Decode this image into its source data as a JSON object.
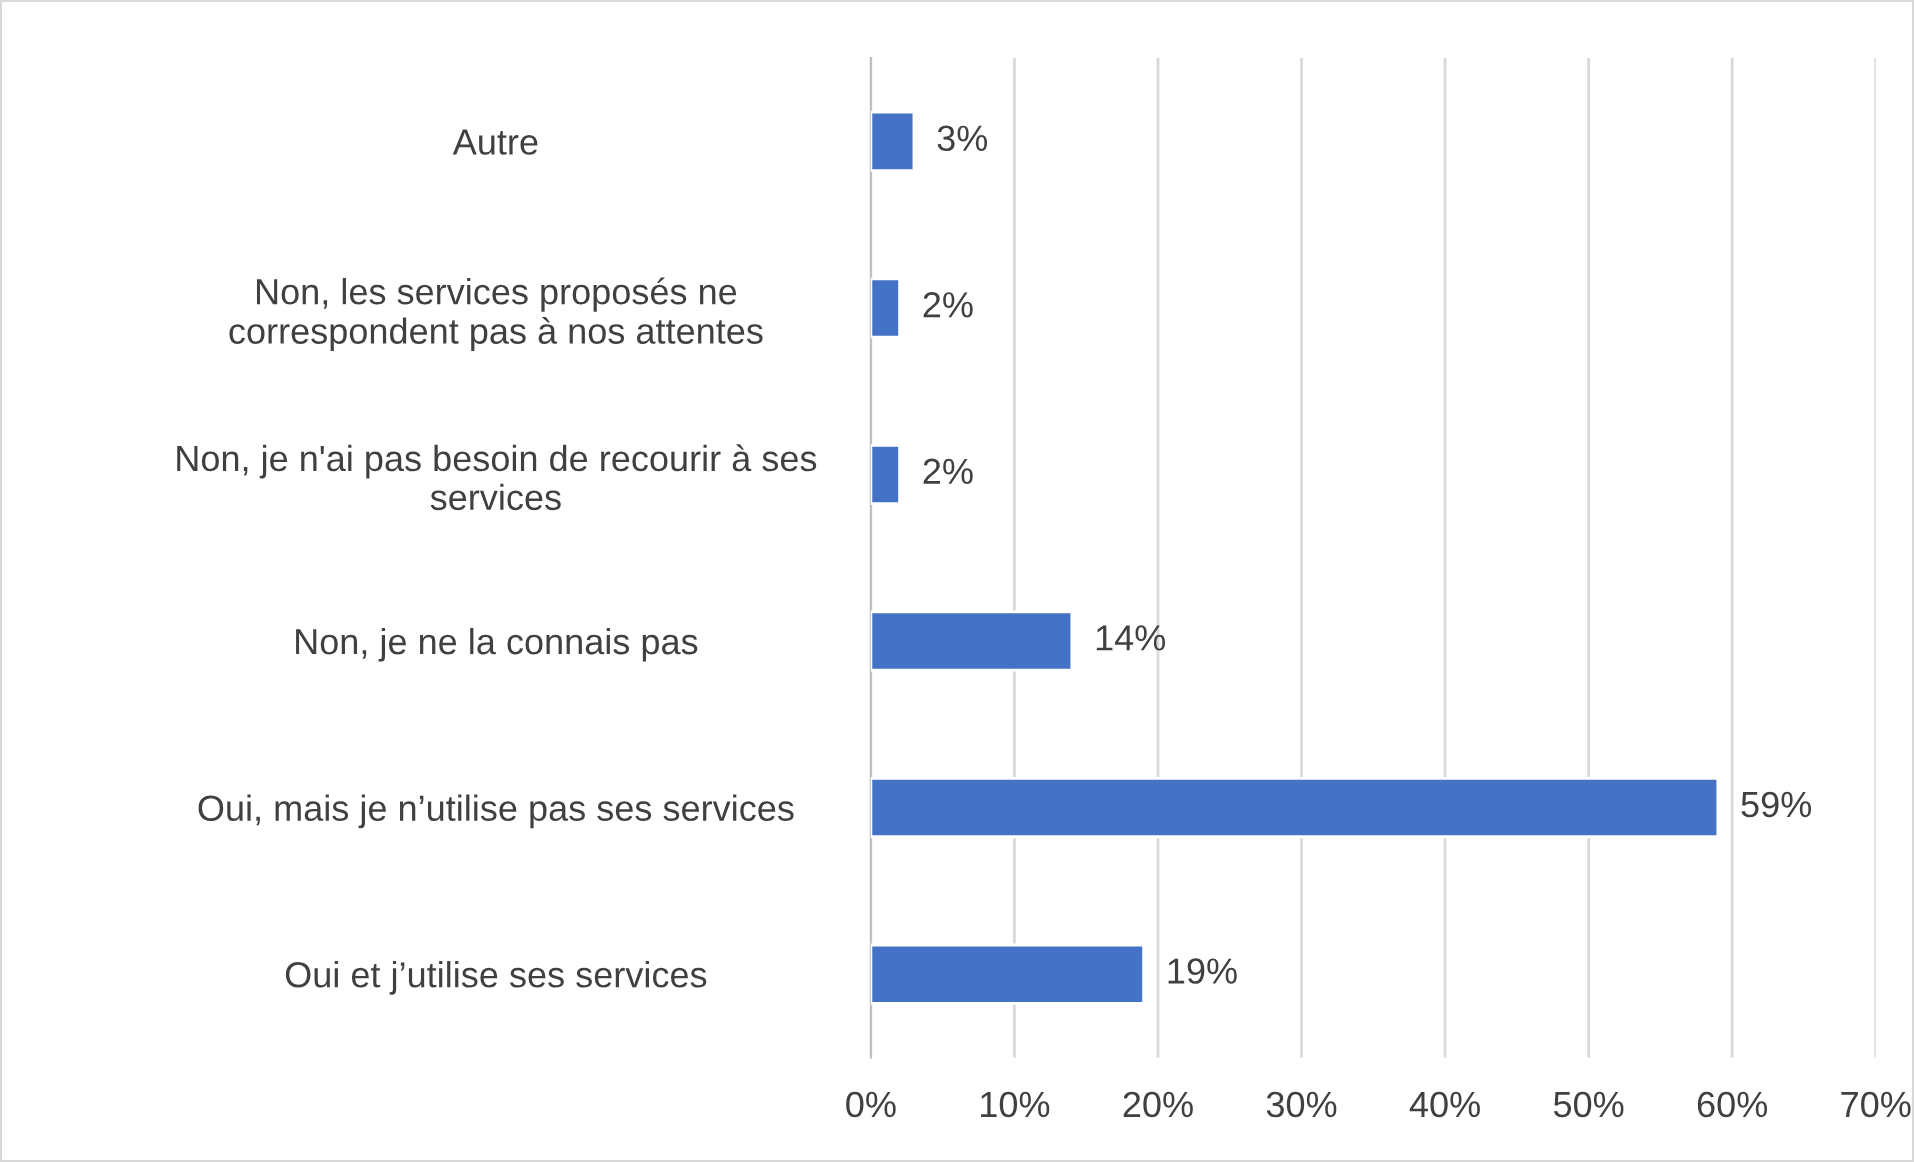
{
  "chart_data": {
    "type": "bar",
    "orientation": "horizontal",
    "categories": [
      "Autre",
      "Non, les services proposés ne\ncorrespondent pas à nos attentes",
      "Non, je n'ai pas besoin de recourir à ses\nservices",
      "Non, je ne la connais pas",
      "Oui, mais je n’utilise pas ses services",
      "Oui et j’utilise ses services"
    ],
    "values": [
      3,
      2,
      2,
      14,
      59,
      19
    ],
    "value_labels": [
      "3%",
      "2%",
      "2%",
      "14%",
      "59%",
      "19%"
    ],
    "color": "#4472c4",
    "xlim": [
      0,
      70
    ],
    "xticks": [
      {
        "value": 0,
        "label": "0%"
      },
      {
        "value": 10,
        "label": "10%"
      },
      {
        "value": 20,
        "label": "20%"
      },
      {
        "value": 30,
        "label": "30%"
      },
      {
        "value": 40,
        "label": "40%"
      },
      {
        "value": 50,
        "label": "50%"
      },
      {
        "value": 60,
        "label": "60%"
      },
      {
        "value": 70,
        "label": "70%"
      }
    ],
    "grid": "x",
    "legend": false
  }
}
